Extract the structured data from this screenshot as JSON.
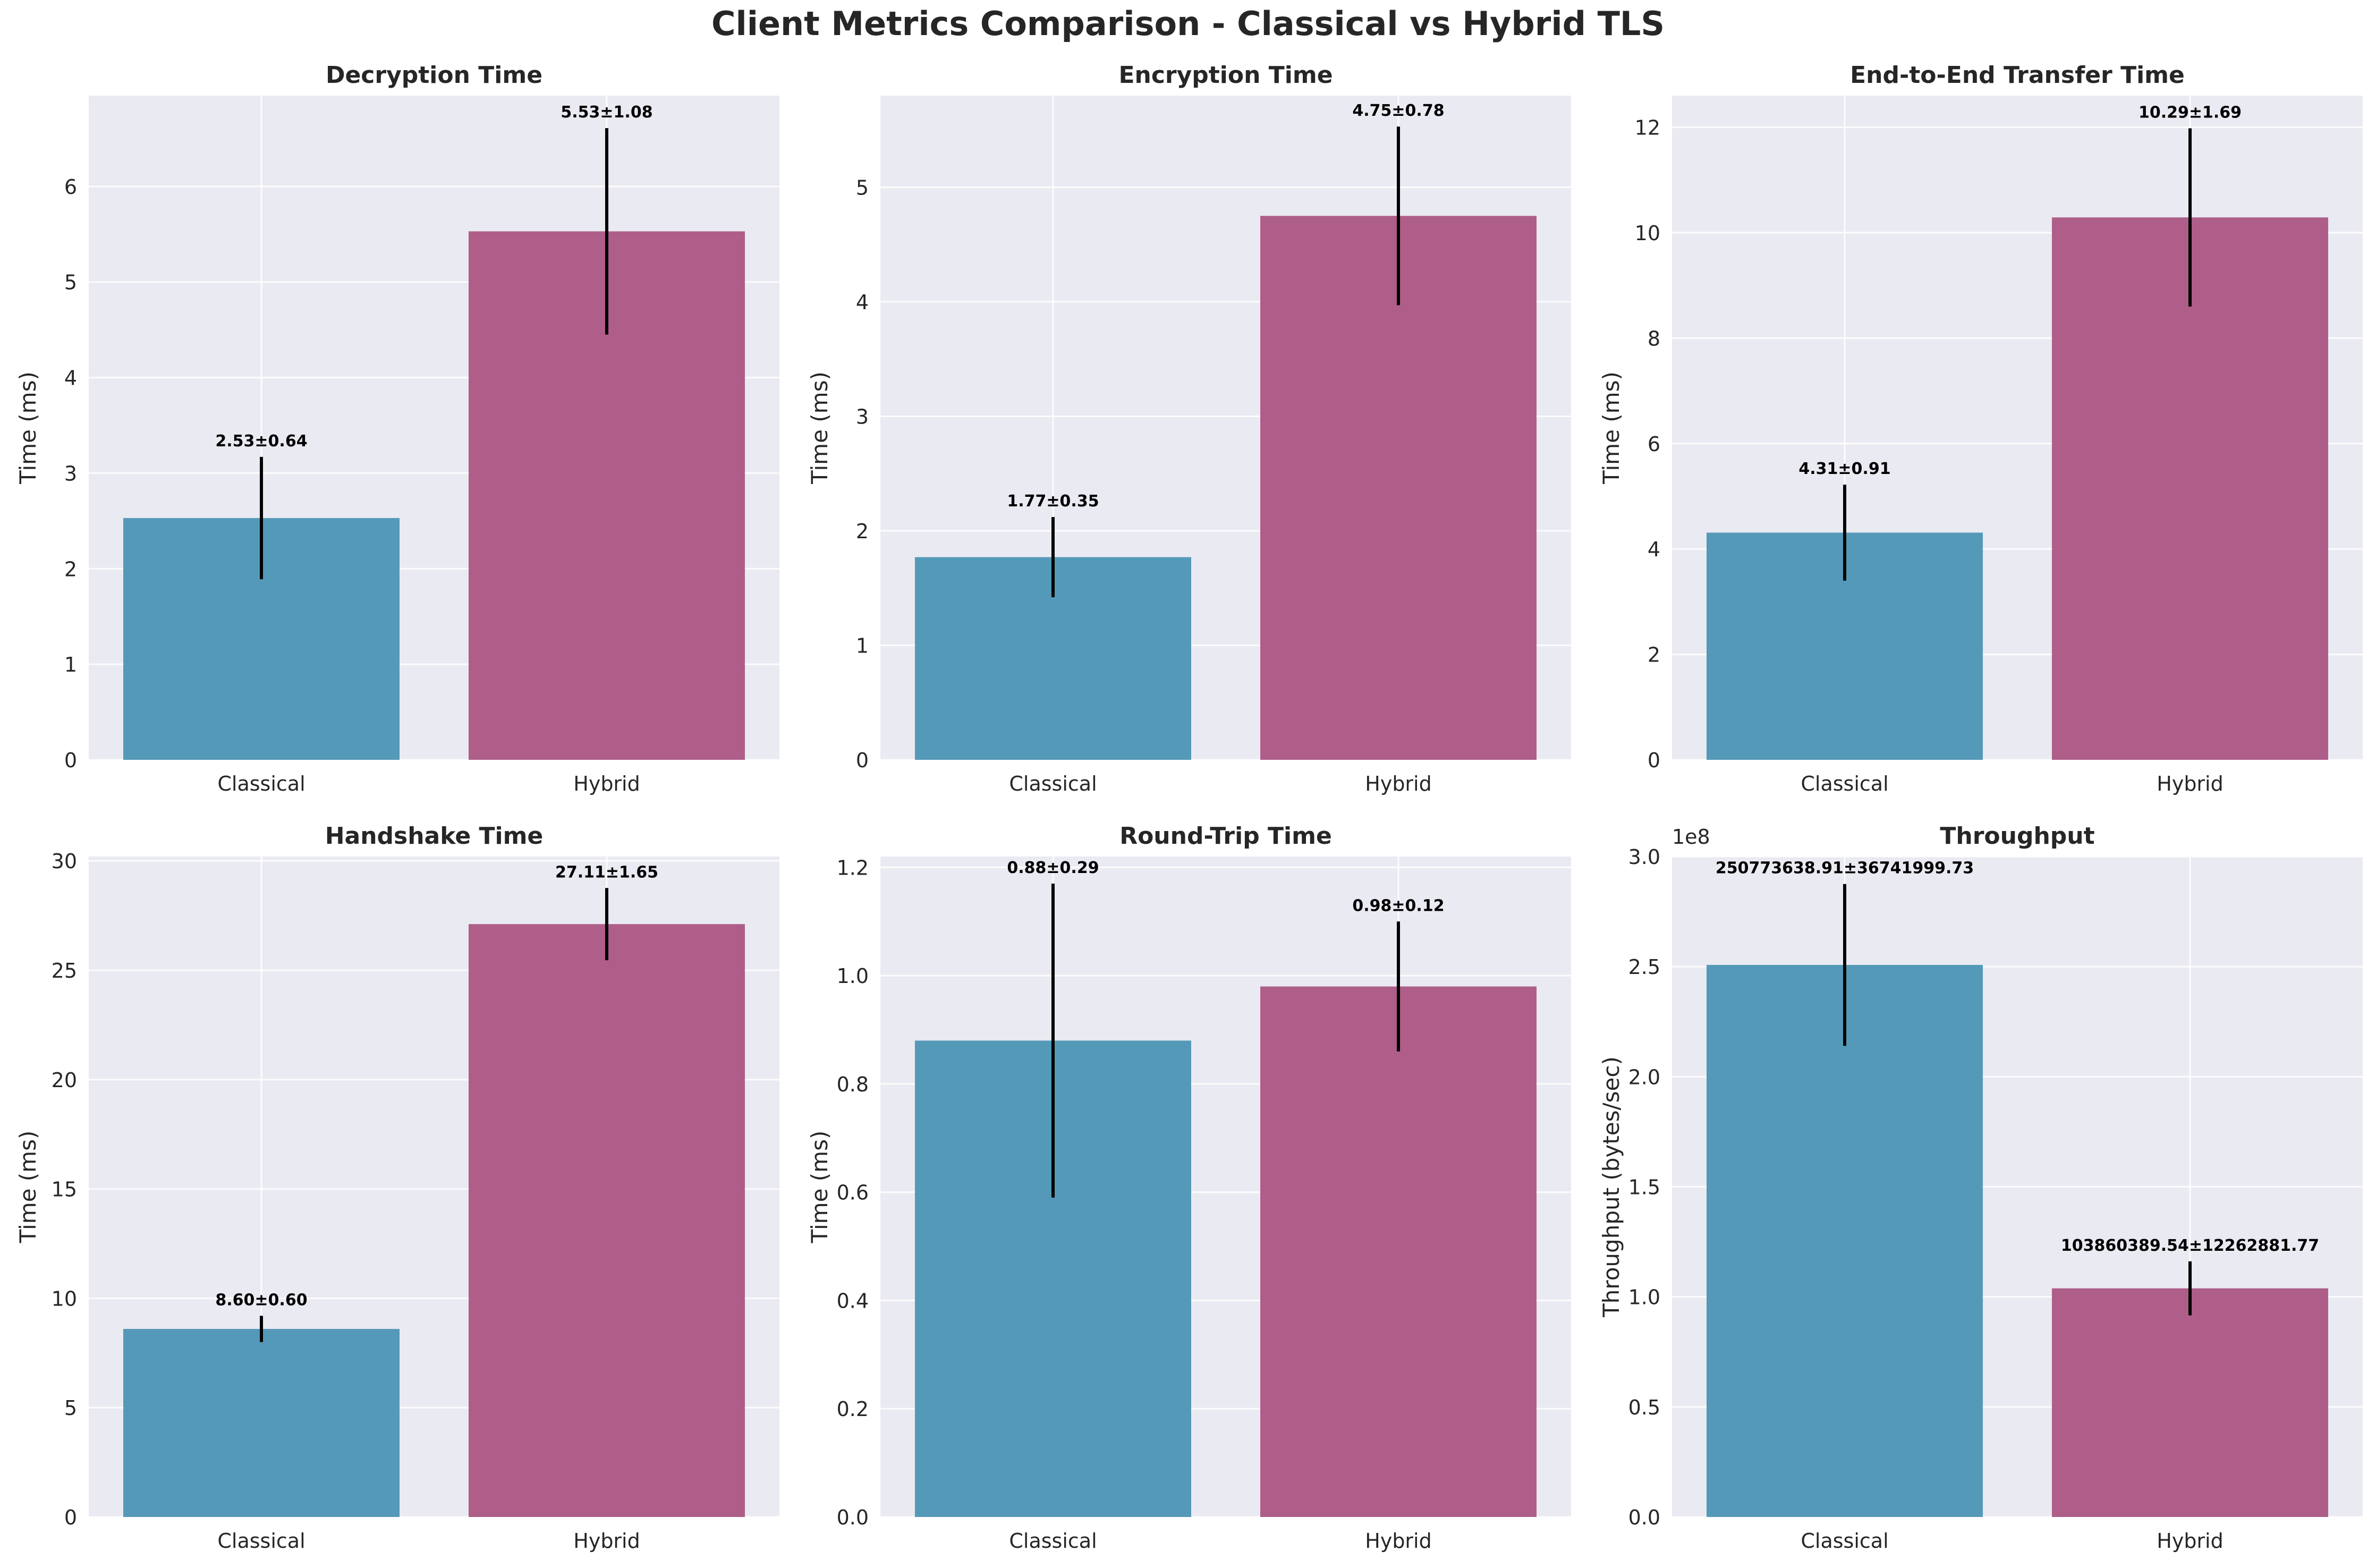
{
  "figure": {
    "title": "Client Metrics Comparison - Classical vs Hybrid TLS"
  },
  "colors": {
    "classical": "#5599b8",
    "hybrid": "#ae5e89",
    "axes_bg": "#eaeaf2",
    "grid": "#ffffff",
    "errorbar": "#000000"
  },
  "chart_data": [
    {
      "type": "bar",
      "title": "Decryption Time",
      "categories": [
        "Classical",
        "Hybrid"
      ],
      "values": [
        2.53,
        5.53
      ],
      "errors": [
        0.64,
        1.08
      ],
      "labels": [
        "2.53±0.64",
        "5.53±1.08"
      ],
      "ylabel": "Time (ms)",
      "ylim": [
        0,
        6.95
      ],
      "yticks": [
        0,
        1,
        2,
        3,
        4,
        5,
        6
      ],
      "ytick_labels": [
        "0",
        "1",
        "2",
        "3",
        "4",
        "5",
        "6"
      ],
      "offset_label": "",
      "grid": true
    },
    {
      "type": "bar",
      "title": "Encryption Time",
      "categories": [
        "Classical",
        "Hybrid"
      ],
      "values": [
        1.77,
        4.75
      ],
      "errors": [
        0.35,
        0.78
      ],
      "labels": [
        "1.77±0.35",
        "4.75±0.78"
      ],
      "ylabel": "Time (ms)",
      "ylim": [
        0,
        5.8
      ],
      "yticks": [
        0,
        1,
        2,
        3,
        4,
        5
      ],
      "ytick_labels": [
        "0",
        "1",
        "2",
        "3",
        "4",
        "5"
      ],
      "offset_label": "",
      "grid": true
    },
    {
      "type": "bar",
      "title": "End-to-End Transfer Time",
      "categories": [
        "Classical",
        "Hybrid"
      ],
      "values": [
        4.31,
        10.29
      ],
      "errors": [
        0.91,
        1.69
      ],
      "labels": [
        "4.31±0.91",
        "10.29±1.69"
      ],
      "ylabel": "Time (ms)",
      "ylim": [
        0,
        12.6
      ],
      "yticks": [
        0,
        2,
        4,
        6,
        8,
        10,
        12
      ],
      "ytick_labels": [
        "0",
        "2",
        "4",
        "6",
        "8",
        "10",
        "12"
      ],
      "offset_label": "",
      "grid": true
    },
    {
      "type": "bar",
      "title": "Handshake Time",
      "categories": [
        "Classical",
        "Hybrid"
      ],
      "values": [
        8.6,
        27.11
      ],
      "errors": [
        0.6,
        1.65
      ],
      "labels": [
        "8.60±0.60",
        "27.11±1.65"
      ],
      "ylabel": "Time (ms)",
      "ylim": [
        0,
        30.2
      ],
      "yticks": [
        0,
        5,
        10,
        15,
        20,
        25,
        30
      ],
      "ytick_labels": [
        "0",
        "5",
        "10",
        "15",
        "20",
        "25",
        "30"
      ],
      "offset_label": "",
      "grid": true
    },
    {
      "type": "bar",
      "title": "Round-Trip Time",
      "categories": [
        "Classical",
        "Hybrid"
      ],
      "values": [
        0.88,
        0.98
      ],
      "errors": [
        0.29,
        0.12
      ],
      "labels": [
        "0.88±0.29",
        "0.98±0.12"
      ],
      "ylabel": "Time (ms)",
      "ylim": [
        0,
        1.22
      ],
      "yticks": [
        0,
        0.2,
        0.4,
        0.6,
        0.8,
        1.0,
        1.2
      ],
      "ytick_labels": [
        "0.0",
        "0.2",
        "0.4",
        "0.6",
        "0.8",
        "1.0",
        "1.2"
      ],
      "offset_label": "",
      "grid": true
    },
    {
      "type": "bar",
      "title": "Throughput",
      "categories": [
        "Classical",
        "Hybrid"
      ],
      "values": [
        250773638.91,
        103860389.54
      ],
      "errors": [
        36741999.73,
        12262881.77
      ],
      "labels": [
        "250773638.91±36741999.73",
        "103860389.54±12262881.77"
      ],
      "ylabel": "Throughput (bytes/sec)",
      "ylim": [
        0,
        300000000
      ],
      "yticks": [
        0,
        50000000,
        100000000,
        150000000,
        200000000,
        250000000,
        300000000
      ],
      "ytick_labels": [
        "0.0",
        "0.5",
        "1.0",
        "1.5",
        "2.0",
        "2.5",
        "3.0"
      ],
      "offset_label": "1e8",
      "grid": true
    }
  ]
}
